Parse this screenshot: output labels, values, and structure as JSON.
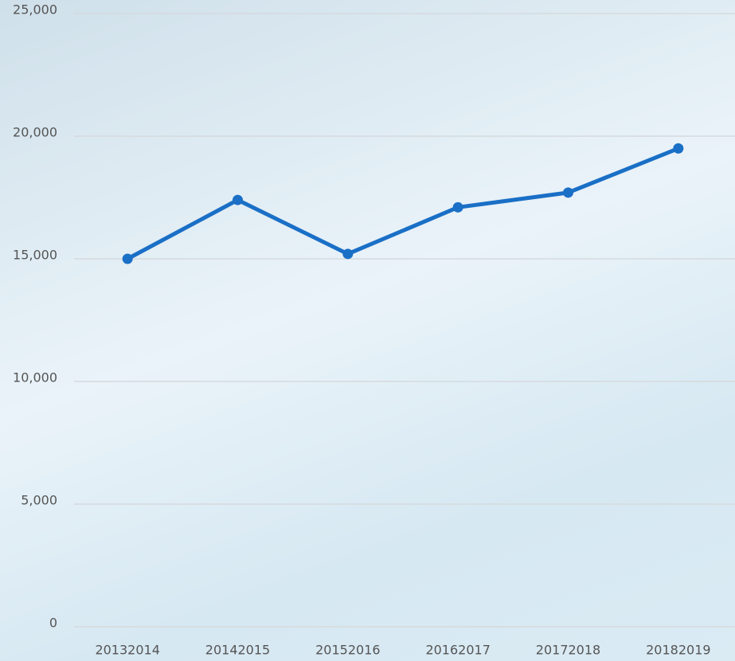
{
  "chart_data": {
    "type": "line",
    "categories": [
      "20132014",
      "20142015",
      "20152016",
      "20162017",
      "20172018",
      "20182019"
    ],
    "series": [
      {
        "color": "#1a6fc6",
        "values": [
          15000,
          17400,
          15200,
          17100,
          17700,
          19500
        ]
      }
    ],
    "ylim": [
      0,
      25000
    ],
    "yticks": [
      0,
      {
        "value": 5000,
        "label": "5,000"
      },
      {
        "value": 10000,
        "label": "10,000"
      },
      {
        "value": 15000,
        "label": "15,000"
      },
      {
        "value": 20000,
        "label": "20,000"
      },
      {
        "value": 25000,
        "label": "25,000"
      }
    ],
    "grid": true
  }
}
